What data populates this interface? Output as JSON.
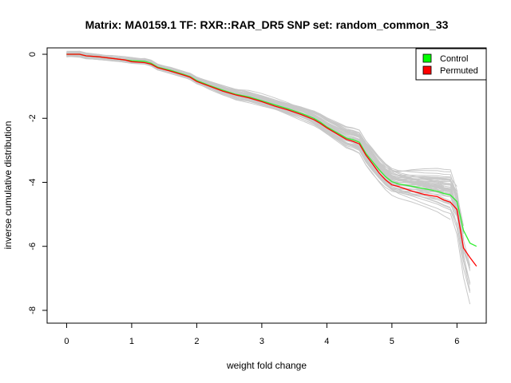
{
  "chart_data": {
    "type": "line",
    "title": "Matrix: MA0159.1 TF: RXR::RAR_DR5 SNP set: random_common_33",
    "xlabel": "weight fold change",
    "ylabel": "inverse cumulative distribution",
    "xlim": [
      -0.3,
      6.45
    ],
    "ylim": [
      -8.4,
      0.2
    ],
    "x_ticks": [
      0,
      1,
      2,
      3,
      4,
      5,
      6
    ],
    "y_ticks": [
      0,
      -2,
      -4,
      -6,
      -8
    ],
    "grid": false,
    "legend_position": "top-right",
    "legend": [
      {
        "label": "Control",
        "color": "#00ff00"
      },
      {
        "label": "Permuted",
        "color": "#ff0000"
      }
    ],
    "background_series_color": "#c8c8c8",
    "series": [
      {
        "name": "Control",
        "color": "#33ee33",
        "x": [
          0,
          0.2,
          0.3,
          0.5,
          0.7,
          0.9,
          1.0,
          1.2,
          1.3,
          1.4,
          1.6,
          1.8,
          1.9,
          2.0,
          2.2,
          2.4,
          2.6,
          2.8,
          3.0,
          3.2,
          3.4,
          3.6,
          3.8,
          3.9,
          4.0,
          4.2,
          4.3,
          4.4,
          4.5,
          4.6,
          4.7,
          4.8,
          4.9,
          5.0,
          5.1,
          5.3,
          5.5,
          5.7,
          5.8,
          5.9,
          6.0,
          6.1,
          6.2,
          6.3
        ],
        "y": [
          0,
          0,
          -0.05,
          -0.08,
          -0.13,
          -0.18,
          -0.2,
          -0.22,
          -0.28,
          -0.4,
          -0.5,
          -0.63,
          -0.7,
          -0.82,
          -0.98,
          -1.12,
          -1.25,
          -1.33,
          -1.45,
          -1.58,
          -1.7,
          -1.84,
          -2.0,
          -2.12,
          -2.27,
          -2.5,
          -2.62,
          -2.67,
          -2.75,
          -3.1,
          -3.35,
          -3.6,
          -3.82,
          -3.98,
          -4.05,
          -4.12,
          -4.2,
          -4.28,
          -4.35,
          -4.4,
          -4.6,
          -5.5,
          -5.9,
          -6.0
        ]
      },
      {
        "name": "Permuted",
        "color": "#ff0000",
        "x": [
          0,
          0.2,
          0.3,
          0.5,
          0.7,
          0.9,
          1.0,
          1.2,
          1.3,
          1.4,
          1.6,
          1.8,
          1.9,
          2.0,
          2.2,
          2.4,
          2.6,
          2.8,
          3.0,
          3.2,
          3.4,
          3.6,
          3.8,
          3.9,
          4.0,
          4.2,
          4.3,
          4.4,
          4.5,
          4.6,
          4.7,
          4.8,
          4.9,
          5.0,
          5.1,
          5.3,
          5.5,
          5.7,
          5.8,
          5.9,
          6.0,
          6.1,
          6.2,
          6.3
        ],
        "y": [
          0,
          0,
          -0.05,
          -0.08,
          -0.13,
          -0.18,
          -0.23,
          -0.26,
          -0.31,
          -0.42,
          -0.53,
          -0.65,
          -0.72,
          -0.85,
          -1.0,
          -1.15,
          -1.27,
          -1.36,
          -1.48,
          -1.62,
          -1.74,
          -1.88,
          -2.04,
          -2.16,
          -2.3,
          -2.54,
          -2.66,
          -2.72,
          -2.8,
          -3.15,
          -3.42,
          -3.7,
          -3.92,
          -4.08,
          -4.13,
          -4.27,
          -4.38,
          -4.45,
          -4.55,
          -4.62,
          -4.85,
          -6.05,
          -6.35,
          -6.62
        ]
      }
    ]
  }
}
